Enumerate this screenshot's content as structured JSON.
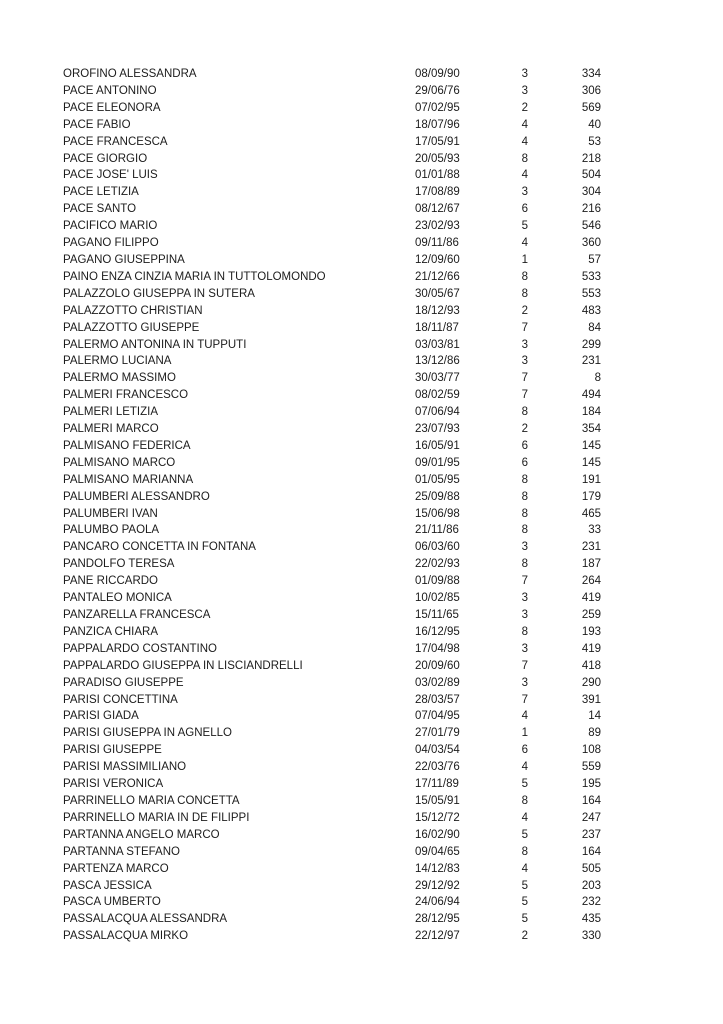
{
  "page": {
    "background_color": "#ffffff",
    "text_color": "#1c1c1c"
  },
  "table": {
    "columns": [
      "name",
      "date",
      "num",
      "value"
    ],
    "rows": [
      {
        "name": "OROFINO ALESSANDRA",
        "date": "08/09/90",
        "num": "3",
        "value": "334"
      },
      {
        "name": "PACE ANTONINO",
        "date": "29/06/76",
        "num": "3",
        "value": "306"
      },
      {
        "name": "PACE ELEONORA",
        "date": "07/02/95",
        "num": "2",
        "value": "569"
      },
      {
        "name": "PACE FABIO",
        "date": "18/07/96",
        "num": "4",
        "value": "40"
      },
      {
        "name": "PACE FRANCESCA",
        "date": "17/05/91",
        "num": "4",
        "value": "53"
      },
      {
        "name": "PACE GIORGIO",
        "date": "20/05/93",
        "num": "8",
        "value": "218"
      },
      {
        "name": "PACE JOSE' LUIS",
        "date": "01/01/88",
        "num": "4",
        "value": "504"
      },
      {
        "name": "PACE LETIZIA",
        "date": "17/08/89",
        "num": "3",
        "value": "304"
      },
      {
        "name": "PACE SANTO",
        "date": "08/12/67",
        "num": "6",
        "value": "216"
      },
      {
        "name": "PACIFICO MARIO",
        "date": "23/02/93",
        "num": "5",
        "value": "546"
      },
      {
        "name": "PAGANO FILIPPO",
        "date": "09/11/86",
        "num": "4",
        "value": "360"
      },
      {
        "name": "PAGANO GIUSEPPINA",
        "date": "12/09/60",
        "num": "1",
        "value": "57"
      },
      {
        "name": "PAINO ENZA CINZIA MARIA IN TUTTOLOMONDO",
        "date": "21/12/66",
        "num": "8",
        "value": "533"
      },
      {
        "name": "PALAZZOLO GIUSEPPA IN SUTERA",
        "date": "30/05/67",
        "num": "8",
        "value": "553"
      },
      {
        "name": "PALAZZOTTO CHRISTIAN",
        "date": "18/12/93",
        "num": "2",
        "value": "483"
      },
      {
        "name": "PALAZZOTTO GIUSEPPE",
        "date": "18/11/87",
        "num": "7",
        "value": "84"
      },
      {
        "name": "PALERMO ANTONINA IN TUPPUTI",
        "date": "03/03/81",
        "num": "3",
        "value": "299"
      },
      {
        "name": "PALERMO LUCIANA",
        "date": "13/12/86",
        "num": "3",
        "value": "231"
      },
      {
        "name": "PALERMO MASSIMO",
        "date": "30/03/77",
        "num": "7",
        "value": "8"
      },
      {
        "name": "PALMERI FRANCESCO",
        "date": "08/02/59",
        "num": "7",
        "value": "494"
      },
      {
        "name": "PALMERI LETIZIA",
        "date": "07/06/94",
        "num": "8",
        "value": "184"
      },
      {
        "name": "PALMERI MARCO",
        "date": "23/07/93",
        "num": "2",
        "value": "354"
      },
      {
        "name": "PALMISANO FEDERICA",
        "date": "16/05/91",
        "num": "6",
        "value": "145"
      },
      {
        "name": "PALMISANO MARCO",
        "date": "09/01/95",
        "num": "6",
        "value": "145"
      },
      {
        "name": "PALMISANO MARIANNA",
        "date": "01/05/95",
        "num": "8",
        "value": "191"
      },
      {
        "name": "PALUMBERI ALESSANDRO",
        "date": "25/09/88",
        "num": "8",
        "value": "179"
      },
      {
        "name": "PALUMBERI IVAN",
        "date": "15/06/98",
        "num": "8",
        "value": "465"
      },
      {
        "name": "PALUMBO PAOLA",
        "date": "21/11/86",
        "num": "8",
        "value": "33"
      },
      {
        "name": "PANCARO CONCETTA IN FONTANA",
        "date": "06/03/60",
        "num": "3",
        "value": "231"
      },
      {
        "name": "PANDOLFO TERESA",
        "date": "22/02/93",
        "num": "8",
        "value": "187"
      },
      {
        "name": "PANE RICCARDO",
        "date": "01/09/88",
        "num": "7",
        "value": "264"
      },
      {
        "name": "PANTALEO MONICA",
        "date": "10/02/85",
        "num": "3",
        "value": "419"
      },
      {
        "name": "PANZARELLA FRANCESCA",
        "date": "15/11/65",
        "num": "3",
        "value": "259"
      },
      {
        "name": "PANZICA CHIARA",
        "date": "16/12/95",
        "num": "8",
        "value": "193"
      },
      {
        "name": "PAPPALARDO COSTANTINO",
        "date": "17/04/98",
        "num": "3",
        "value": "419"
      },
      {
        "name": "PAPPALARDO GIUSEPPA IN LISCIANDRELLI",
        "date": "20/09/60",
        "num": "7",
        "value": "418"
      },
      {
        "name": "PARADISO GIUSEPPE",
        "date": "03/02/89",
        "num": "3",
        "value": "290"
      },
      {
        "name": "PARISI CONCETTINA",
        "date": "28/03/57",
        "num": "7",
        "value": "391"
      },
      {
        "name": "PARISI GIADA",
        "date": "07/04/95",
        "num": "4",
        "value": "14"
      },
      {
        "name": "PARISI GIUSEPPA IN AGNELLO",
        "date": "27/01/79",
        "num": "1",
        "value": "89"
      },
      {
        "name": "PARISI GIUSEPPE",
        "date": "04/03/54",
        "num": "6",
        "value": "108"
      },
      {
        "name": "PARISI MASSIMILIANO",
        "date": "22/03/76",
        "num": "4",
        "value": "559"
      },
      {
        "name": "PARISI VERONICA",
        "date": "17/11/89",
        "num": "5",
        "value": "195"
      },
      {
        "name": "PARRINELLO MARIA CONCETTA",
        "date": "15/05/91",
        "num": "8",
        "value": "164"
      },
      {
        "name": "PARRINELLO MARIA IN DE FILIPPI",
        "date": "15/12/72",
        "num": "4",
        "value": "247"
      },
      {
        "name": "PARTANNA ANGELO MARCO",
        "date": "16/02/90",
        "num": "5",
        "value": "237"
      },
      {
        "name": "PARTANNA STEFANO",
        "date": "09/04/65",
        "num": "8",
        "value": "164"
      },
      {
        "name": "PARTENZA MARCO",
        "date": "14/12/83",
        "num": "4",
        "value": "505"
      },
      {
        "name": "PASCA JESSICA",
        "date": "29/12/92",
        "num": "5",
        "value": "203"
      },
      {
        "name": "PASCA UMBERTO",
        "date": "24/06/94",
        "num": "5",
        "value": "232"
      },
      {
        "name": "PASSALACQUA ALESSANDRA",
        "date": "28/12/95",
        "num": "5",
        "value": "435"
      },
      {
        "name": "PASSALACQUA MIRKO",
        "date": "22/12/97",
        "num": "2",
        "value": "330"
      }
    ]
  }
}
